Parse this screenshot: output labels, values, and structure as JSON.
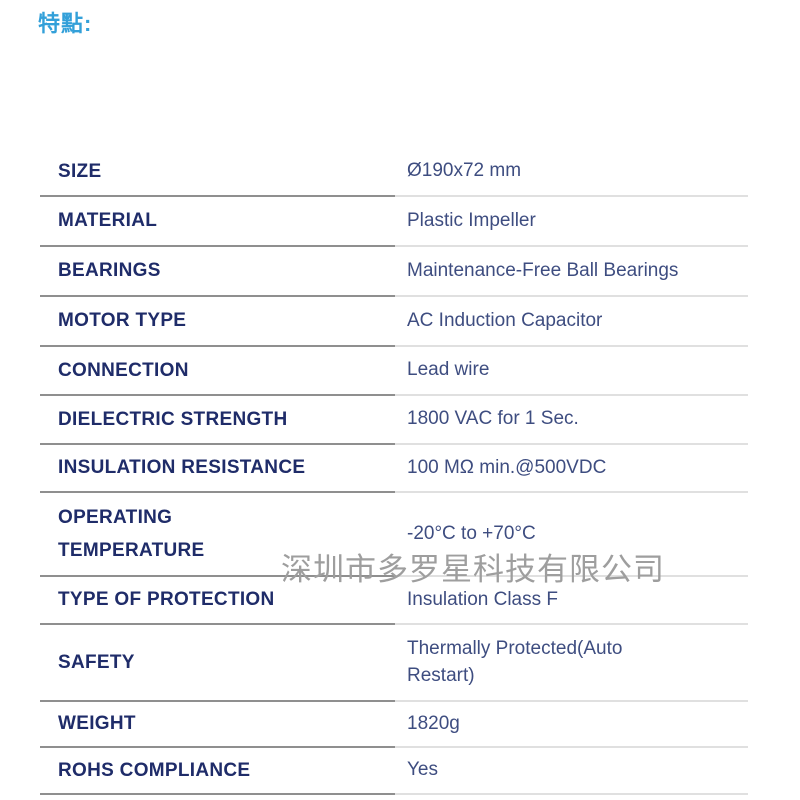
{
  "title": "特點:",
  "watermark": "深圳市多罗星科技有限公司",
  "colors": {
    "title_color": "#33a0d9",
    "label_color": "#1f2c69",
    "value_color": "#3e4d80",
    "divider_left": "#8f8f8f",
    "divider_right": "#e0e0e0",
    "watermark_color": "#9e9e9e",
    "page_bg": "#ffffff"
  },
  "table": {
    "rows": [
      {
        "label": "SIZE",
        "value": "Ø190x72 mm"
      },
      {
        "label": "MATERIAL",
        "value": "Plastic Impeller"
      },
      {
        "label": "BEARINGS",
        "value": "Maintenance-Free Ball Bearings"
      },
      {
        "label": "MOTOR TYPE",
        "value": "AC Induction Capacitor"
      },
      {
        "label": "CONNECTION",
        "value": "Lead wire"
      },
      {
        "label": "DIELECTRIC STRENGTH",
        "value": "1800 VAC for 1 Sec."
      },
      {
        "label": "INSULATION RESISTANCE",
        "value": "100 MΩ min.@500VDC"
      },
      {
        "label": "OPERATING\nTEMPERATURE",
        "value": "-20°C to +70°C"
      },
      {
        "label": "TYPE OF PROTECTION",
        "value": "Insulation Class F"
      },
      {
        "label": "SAFETY",
        "value": "Thermally Protected(Auto\nRestart)"
      },
      {
        "label": "WEIGHT",
        "value": "1820g"
      },
      {
        "label": "ROHS COMPLIANCE",
        "value": "Yes"
      }
    ]
  }
}
